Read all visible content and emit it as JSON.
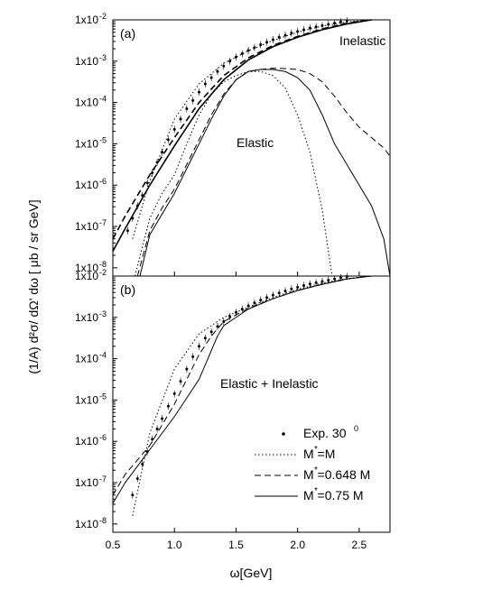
{
  "chart_data": {
    "type": "line",
    "x_label": "ω[GeV]",
    "y_label": "(1/A) d²σ/ dΩ' dω [ μb / sr GeV]",
    "xlim": [
      0.5,
      2.75
    ],
    "ylim_log10": [
      -8.2,
      -2
    ],
    "x_ticks": [
      "0.5",
      "1.0",
      "1.5",
      "2.0",
      "2.5"
    ],
    "y_ticks": [
      "1x10",
      "1x10",
      "1x10",
      "1x10",
      "1x10",
      "1x10",
      "1x10"
    ],
    "y_tick_exponents": [
      "-8",
      "-7",
      "-6",
      "-5",
      "-4",
      "-3",
      "-2"
    ],
    "panels": [
      {
        "label": "(a)",
        "annotations": [
          "Inelastic",
          "Elastic"
        ],
        "series": [
          {
            "style": "exp",
            "x": [
              0.62,
              0.66,
              0.7,
              0.74,
              0.78,
              0.82,
              0.86,
              0.9,
              0.95,
              1.0,
              1.05,
              1.1,
              1.15,
              1.2,
              1.25,
              1.3,
              1.35,
              1.4,
              1.45,
              1.5,
              1.55,
              1.6,
              1.65,
              1.7,
              1.75,
              1.8,
              1.85,
              1.9,
              1.95,
              2.0,
              2.05,
              2.1,
              2.15,
              2.2,
              2.25,
              2.3,
              2.35,
              2.4
            ],
            "y": [
              -7.1,
              -6.8,
              -6.5,
              -6.25,
              -5.95,
              -5.7,
              -5.45,
              -5.2,
              -4.9,
              -4.65,
              -4.4,
              -4.15,
              -3.95,
              -3.75,
              -3.55,
              -3.4,
              -3.25,
              -3.12,
              -3.0,
              -2.9,
              -2.82,
              -2.74,
              -2.67,
              -2.6,
              -2.54,
              -2.48,
              -2.42,
              -2.37,
              -2.32,
              -2.28,
              -2.24,
              -2.2,
              -2.17,
              -2.14,
              -2.11,
              -2.08,
              -2.05,
              -2.02
            ]
          },
          {
            "style": "dotted",
            "x": [
              0.66,
              0.8,
              1.0,
              1.2,
              1.4,
              1.6,
              1.8,
              2.0,
              2.2,
              2.4,
              2.6
            ],
            "y": [
              -7.3,
              -5.9,
              -4.4,
              -3.55,
              -3.05,
              -2.75,
              -2.5,
              -2.3,
              -2.15,
              -2.05,
              -2.0
            ]
          },
          {
            "style": "dashed",
            "x": [
              0.5,
              0.6,
              0.8,
              1.0,
              1.2,
              1.4,
              1.6,
              1.8,
              2.0,
              2.2,
              2.4,
              2.6
            ],
            "y": [
              -7.3,
              -6.75,
              -5.75,
              -4.85,
              -4.0,
              -3.35,
              -2.92,
              -2.62,
              -2.4,
              -2.22,
              -2.08,
              -2.0
            ]
          },
          {
            "style": "solid",
            "x": [
              0.5,
              0.6,
              0.8,
              1.0,
              1.2,
              1.4,
              1.6,
              1.8,
              2.0,
              2.2,
              2.4,
              2.6
            ],
            "y": [
              -7.6,
              -7.05,
              -6.0,
              -5.05,
              -4.15,
              -3.45,
              -2.97,
              -2.65,
              -2.42,
              -2.24,
              -2.1,
              -2.0
            ]
          },
          {
            "style": "dotted",
            "x": [
              0.68,
              0.8,
              0.9,
              1.0,
              1.1,
              1.2,
              1.3,
              1.4,
              1.5,
              1.6,
              1.7,
              1.8,
              1.9,
              2.0,
              2.1,
              2.2,
              2.28
            ],
            "y": [
              -8.2,
              -6.8,
              -6.2,
              -5.75,
              -5.0,
              -4.3,
              -3.8,
              -3.5,
              -3.35,
              -3.25,
              -3.25,
              -3.35,
              -3.65,
              -4.3,
              -5.2,
              -6.6,
              -8.2
            ]
          },
          {
            "style": "dashed",
            "x": [
              0.7,
              0.8,
              0.9,
              1.0,
              1.1,
              1.2,
              1.3,
              1.4,
              1.5,
              1.6,
              1.7,
              1.8,
              1.9,
              2.0,
              2.1,
              2.2,
              2.3,
              2.4,
              2.5,
              2.6,
              2.7,
              2.75
            ],
            "y": [
              -8.2,
              -7.1,
              -6.55,
              -6.1,
              -5.5,
              -4.9,
              -4.3,
              -3.8,
              -3.45,
              -3.25,
              -3.2,
              -3.17,
              -3.18,
              -3.2,
              -3.3,
              -3.5,
              -3.85,
              -4.25,
              -4.6,
              -4.85,
              -5.1,
              -5.3
            ]
          },
          {
            "style": "solid",
            "x": [
              0.72,
              0.8,
              0.9,
              1.0,
              1.1,
              1.2,
              1.3,
              1.4,
              1.5,
              1.6,
              1.7,
              1.8,
              1.9,
              2.0,
              2.1,
              2.2,
              2.3,
              2.4,
              2.5,
              2.6,
              2.7,
              2.75
            ],
            "y": [
              -8.2,
              -7.2,
              -6.7,
              -6.2,
              -5.6,
              -5.0,
              -4.4,
              -3.85,
              -3.45,
              -3.25,
              -3.2,
              -3.2,
              -3.25,
              -3.4,
              -3.7,
              -4.3,
              -5.0,
              -5.5,
              -6.0,
              -6.5,
              -7.3,
              -8.2
            ]
          }
        ]
      },
      {
        "label": "(b)",
        "annotations": [
          "Elastic + Inelastic"
        ],
        "series": [
          {
            "style": "exp",
            "x": [
              0.66,
              0.7,
              0.74,
              0.78,
              0.82,
              0.86,
              0.9,
              0.95,
              1.0,
              1.05,
              1.1,
              1.15,
              1.2,
              1.25,
              1.3,
              1.35,
              1.4,
              1.45,
              1.5,
              1.55,
              1.6,
              1.65,
              1.7,
              1.75,
              1.8,
              1.85,
              1.9,
              1.95,
              2.0,
              2.05,
              2.1,
              2.15,
              2.2,
              2.25,
              2.3,
              2.35,
              2.4
            ],
            "y": [
              -7.3,
              -6.9,
              -6.55,
              -6.25,
              -5.95,
              -5.7,
              -5.45,
              -5.15,
              -4.85,
              -4.55,
              -4.25,
              -3.95,
              -3.7,
              -3.5,
              -3.35,
              -3.22,
              -3.1,
              -2.98,
              -2.88,
              -2.8,
              -2.72,
              -2.65,
              -2.58,
              -2.52,
              -2.46,
              -2.41,
              -2.36,
              -2.31,
              -2.27,
              -2.23,
              -2.19,
              -2.16,
              -2.13,
              -2.1,
              -2.07,
              -2.04,
              -2.01
            ]
          },
          {
            "style": "dotted",
            "x": [
              0.66,
              0.8,
              1.0,
              1.2,
              1.4,
              1.6,
              1.8,
              2.0,
              2.2,
              2.4,
              2.6
            ],
            "y": [
              -7.8,
              -5.8,
              -4.25,
              -3.4,
              -3.0,
              -2.75,
              -2.52,
              -2.32,
              -2.17,
              -2.06,
              -2.0
            ]
          },
          {
            "style": "dashed",
            "x": [
              0.5,
              0.6,
              0.8,
              1.0,
              1.1,
              1.2,
              1.3,
              1.4,
              1.6,
              1.8,
              2.0,
              2.2,
              2.4,
              2.6
            ],
            "y": [
              -7.3,
              -6.8,
              -6.1,
              -5.1,
              -4.5,
              -3.9,
              -3.45,
              -3.1,
              -2.78,
              -2.55,
              -2.35,
              -2.2,
              -2.07,
              -2.0
            ]
          },
          {
            "style": "solid",
            "x": [
              0.5,
              0.6,
              0.8,
              1.0,
              1.2,
              1.35,
              1.4,
              1.6,
              1.8,
              2.0,
              2.2,
              2.4,
              2.6
            ],
            "y": [
              -7.5,
              -7.0,
              -6.2,
              -5.4,
              -4.5,
              -3.45,
              -3.2,
              -2.8,
              -2.55,
              -2.35,
              -2.2,
              -2.07,
              -2.0
            ]
          }
        ]
      }
    ],
    "legend": {
      "placement": "lower-right",
      "entries": [
        {
          "label": "Exp. 30",
          "superscript": "0",
          "style": "exp"
        },
        {
          "label": "M =M",
          "star": "*",
          "style": "dotted"
        },
        {
          "label": "M =0.648 M",
          "star": "*",
          "style": "dashed"
        },
        {
          "label": "M =0.75 M",
          "star": "*",
          "style": "solid"
        }
      ]
    }
  }
}
